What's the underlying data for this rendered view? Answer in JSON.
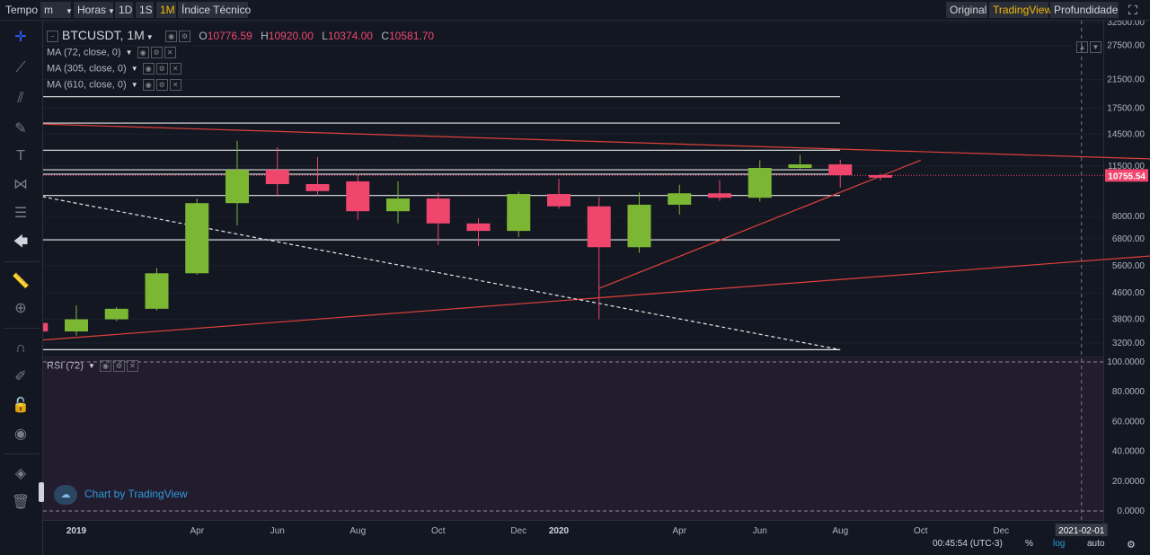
{
  "toolbar": {
    "time_label": "Tempo",
    "interval_select": "m",
    "hours_select": "Horas",
    "intervals": [
      "1D",
      "1S",
      "1M"
    ],
    "selected_interval": "1M",
    "indicators_label": "Índice Técnico",
    "views": [
      "Original",
      "TradingView",
      "Profundidade"
    ],
    "selected_view": "TradingView"
  },
  "legend": {
    "symbol": "BTCUSDT, 1M",
    "open_label": "O",
    "open": "10776.59",
    "high_label": "H",
    "high": "10920.00",
    "low_label": "L",
    "low": "10374.00",
    "close_label": "C",
    "close": "10581.70",
    "indicators": [
      "MA (72, close, 0)",
      "MA (305, close, 0)",
      "MA (610, close, 0)"
    ],
    "rsi": "RSI (72)"
  },
  "branding": "Chart by TradingView",
  "footer": {
    "clock": "00:45:54 (UTC-3)",
    "percent": "%",
    "log": "log",
    "auto": "auto"
  },
  "colors": {
    "up": "#7cb733",
    "down": "#f0466e",
    "trend": "#e0413a",
    "accent": "#f0b90b",
    "rsi_bg": "#221c2e"
  },
  "chart_data": {
    "type": "candlestick",
    "scale": "log",
    "price_ticks": [
      32500,
      27500,
      21500,
      17500,
      14500,
      11500,
      8000,
      6800,
      5600,
      4600,
      3800,
      3200
    ],
    "price_tick_labels": [
      "32500.00",
      "27500.00",
      "21500.00",
      "17500.00",
      "14500.00",
      "11500.00",
      "8000.00",
      "6800.00",
      "5600.00",
      "4600.00",
      "3800.00",
      "3200.00"
    ],
    "last_price": 10755.54,
    "last_price_label": "10755.54",
    "rsi_ticks": [
      100,
      80,
      60,
      40,
      20,
      0
    ],
    "rsi_tick_labels": [
      "100.0000",
      "80.0000",
      "60.0000",
      "40.0000",
      "20.0000",
      "0.0000"
    ],
    "time_labels": [
      "2019",
      "Apr",
      "Jun",
      "Aug",
      "Oct",
      "Dec",
      "2020",
      "Apr",
      "Jun",
      "Aug",
      "Oct",
      "Dec"
    ],
    "time_label_months": [
      "2019-01",
      "2019-04",
      "2019-06",
      "2019-08",
      "2019-10",
      "2019-12",
      "2020-01",
      "2020-04",
      "2020-06",
      "2020-08",
      "2020-10",
      "2020-12"
    ],
    "cursor_time_label": "2021-02-01",
    "candles": [
      {
        "t": "2018-12",
        "o": 3700,
        "h": 4150,
        "l": 3250,
        "c": 3480
      },
      {
        "t": "2019-01",
        "o": 3480,
        "h": 4200,
        "l": 3380,
        "c": 3800
      },
      {
        "t": "2019-02",
        "o": 3800,
        "h": 4150,
        "l": 3750,
        "c": 4100
      },
      {
        "t": "2019-03",
        "o": 4100,
        "h": 5500,
        "l": 4050,
        "c": 5300
      },
      {
        "t": "2019-04",
        "o": 5300,
        "h": 9100,
        "l": 5250,
        "c": 8800
      },
      {
        "t": "2019-05",
        "o": 8800,
        "h": 13800,
        "l": 7500,
        "c": 11200
      },
      {
        "t": "2019-06",
        "o": 11200,
        "h": 13200,
        "l": 9200,
        "c": 10100
      },
      {
        "t": "2019-07",
        "o": 10100,
        "h": 12300,
        "l": 9300,
        "c": 9600
      },
      {
        "t": "2019-08",
        "o": 10300,
        "h": 10900,
        "l": 7800,
        "c": 8300
      },
      {
        "t": "2019-09",
        "o": 8300,
        "h": 10300,
        "l": 7600,
        "c": 9100
      },
      {
        "t": "2019-10",
        "o": 9100,
        "h": 9500,
        "l": 6500,
        "c": 7600
      },
      {
        "t": "2019-11",
        "o": 7600,
        "h": 7900,
        "l": 6450,
        "c": 7200
      },
      {
        "t": "2019-12",
        "o": 7200,
        "h": 9550,
        "l": 6900,
        "c": 9400
      },
      {
        "t": "2020-01",
        "o": 9400,
        "h": 10500,
        "l": 8450,
        "c": 8600
      },
      {
        "t": "2020-02",
        "o": 8600,
        "h": 9200,
        "l": 3800,
        "c": 6400
      },
      {
        "t": "2020-03",
        "o": 6400,
        "h": 9500,
        "l": 6150,
        "c": 8700
      },
      {
        "t": "2020-04",
        "o": 8700,
        "h": 10050,
        "l": 8100,
        "c": 9450
      },
      {
        "t": "2020-05",
        "o": 9450,
        "h": 10400,
        "l": 8950,
        "c": 9150
      },
      {
        "t": "2020-06",
        "o": 9150,
        "h": 12000,
        "l": 8900,
        "c": 11350
      },
      {
        "t": "2020-07",
        "o": 11350,
        "h": 12450,
        "l": 11300,
        "c": 11650
      },
      {
        "t": "2020-08",
        "o": 11650,
        "h": 12050,
        "l": 9850,
        "c": 10776.59
      },
      {
        "t": "2020-09",
        "o": 10776.59,
        "h": 10920,
        "l": 10374,
        "c": 10581.7
      }
    ],
    "horizontal_lines": [
      19000,
      15700,
      12900,
      11200,
      10850,
      9300,
      6750,
      3050
    ],
    "trend_lines": [
      {
        "style": "solid",
        "from": {
          "t": "2018-10",
          "p": 15900
        },
        "to": {
          "t": "2021-09",
          "p": 11550
        }
      },
      {
        "style": "solid",
        "from": {
          "t": "2018-12",
          "p": 3260
        },
        "to": {
          "t": "2021-09",
          "p": 6750
        }
      },
      {
        "style": "solid",
        "from": {
          "t": "2020-02",
          "p": 4750
        },
        "to": {
          "t": "2020-10",
          "p": 12000
        }
      },
      {
        "style": "dashed",
        "from": {
          "t": "2018-12",
          "p": 9300
        },
        "to": {
          "t": "2020-08",
          "p": 3050
        }
      }
    ]
  }
}
